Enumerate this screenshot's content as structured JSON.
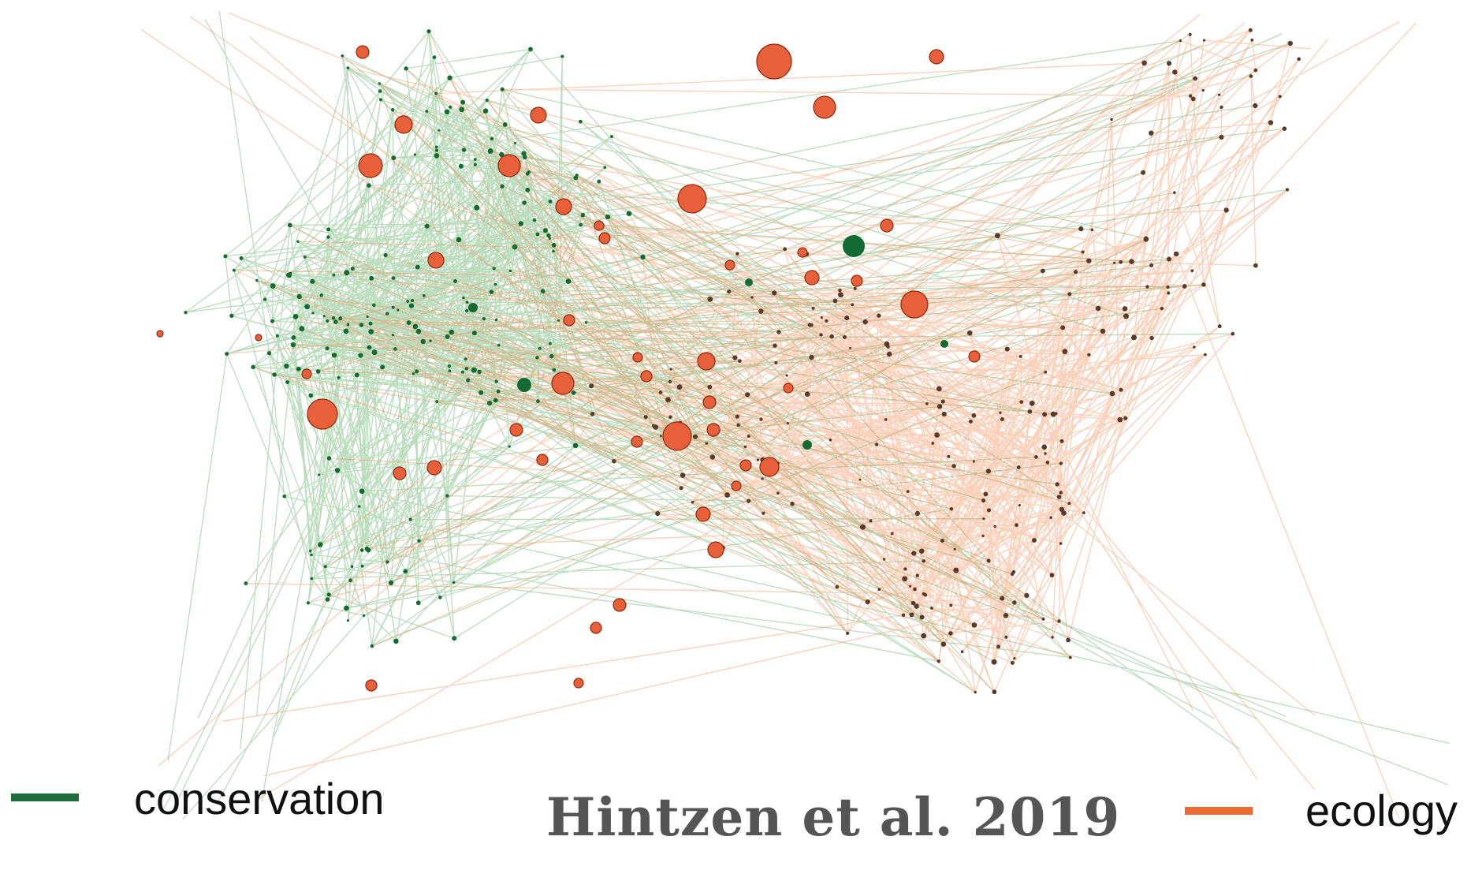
{
  "figure": {
    "credit": "Hintzen et al. 2019"
  },
  "legend": {
    "items": [
      {
        "label": "conservation",
        "color": "#1f6b3a"
      },
      {
        "label": "ecology",
        "color": "#ee6a35"
      }
    ]
  },
  "colors": {
    "conservation_edge": "#3f9a45",
    "ecology_edge": "#f08a50",
    "node_fill": "#e8603a",
    "node_stroke": "#8a2a10",
    "green_node": "#146b32",
    "small_node": "#5a3a2a"
  }
}
